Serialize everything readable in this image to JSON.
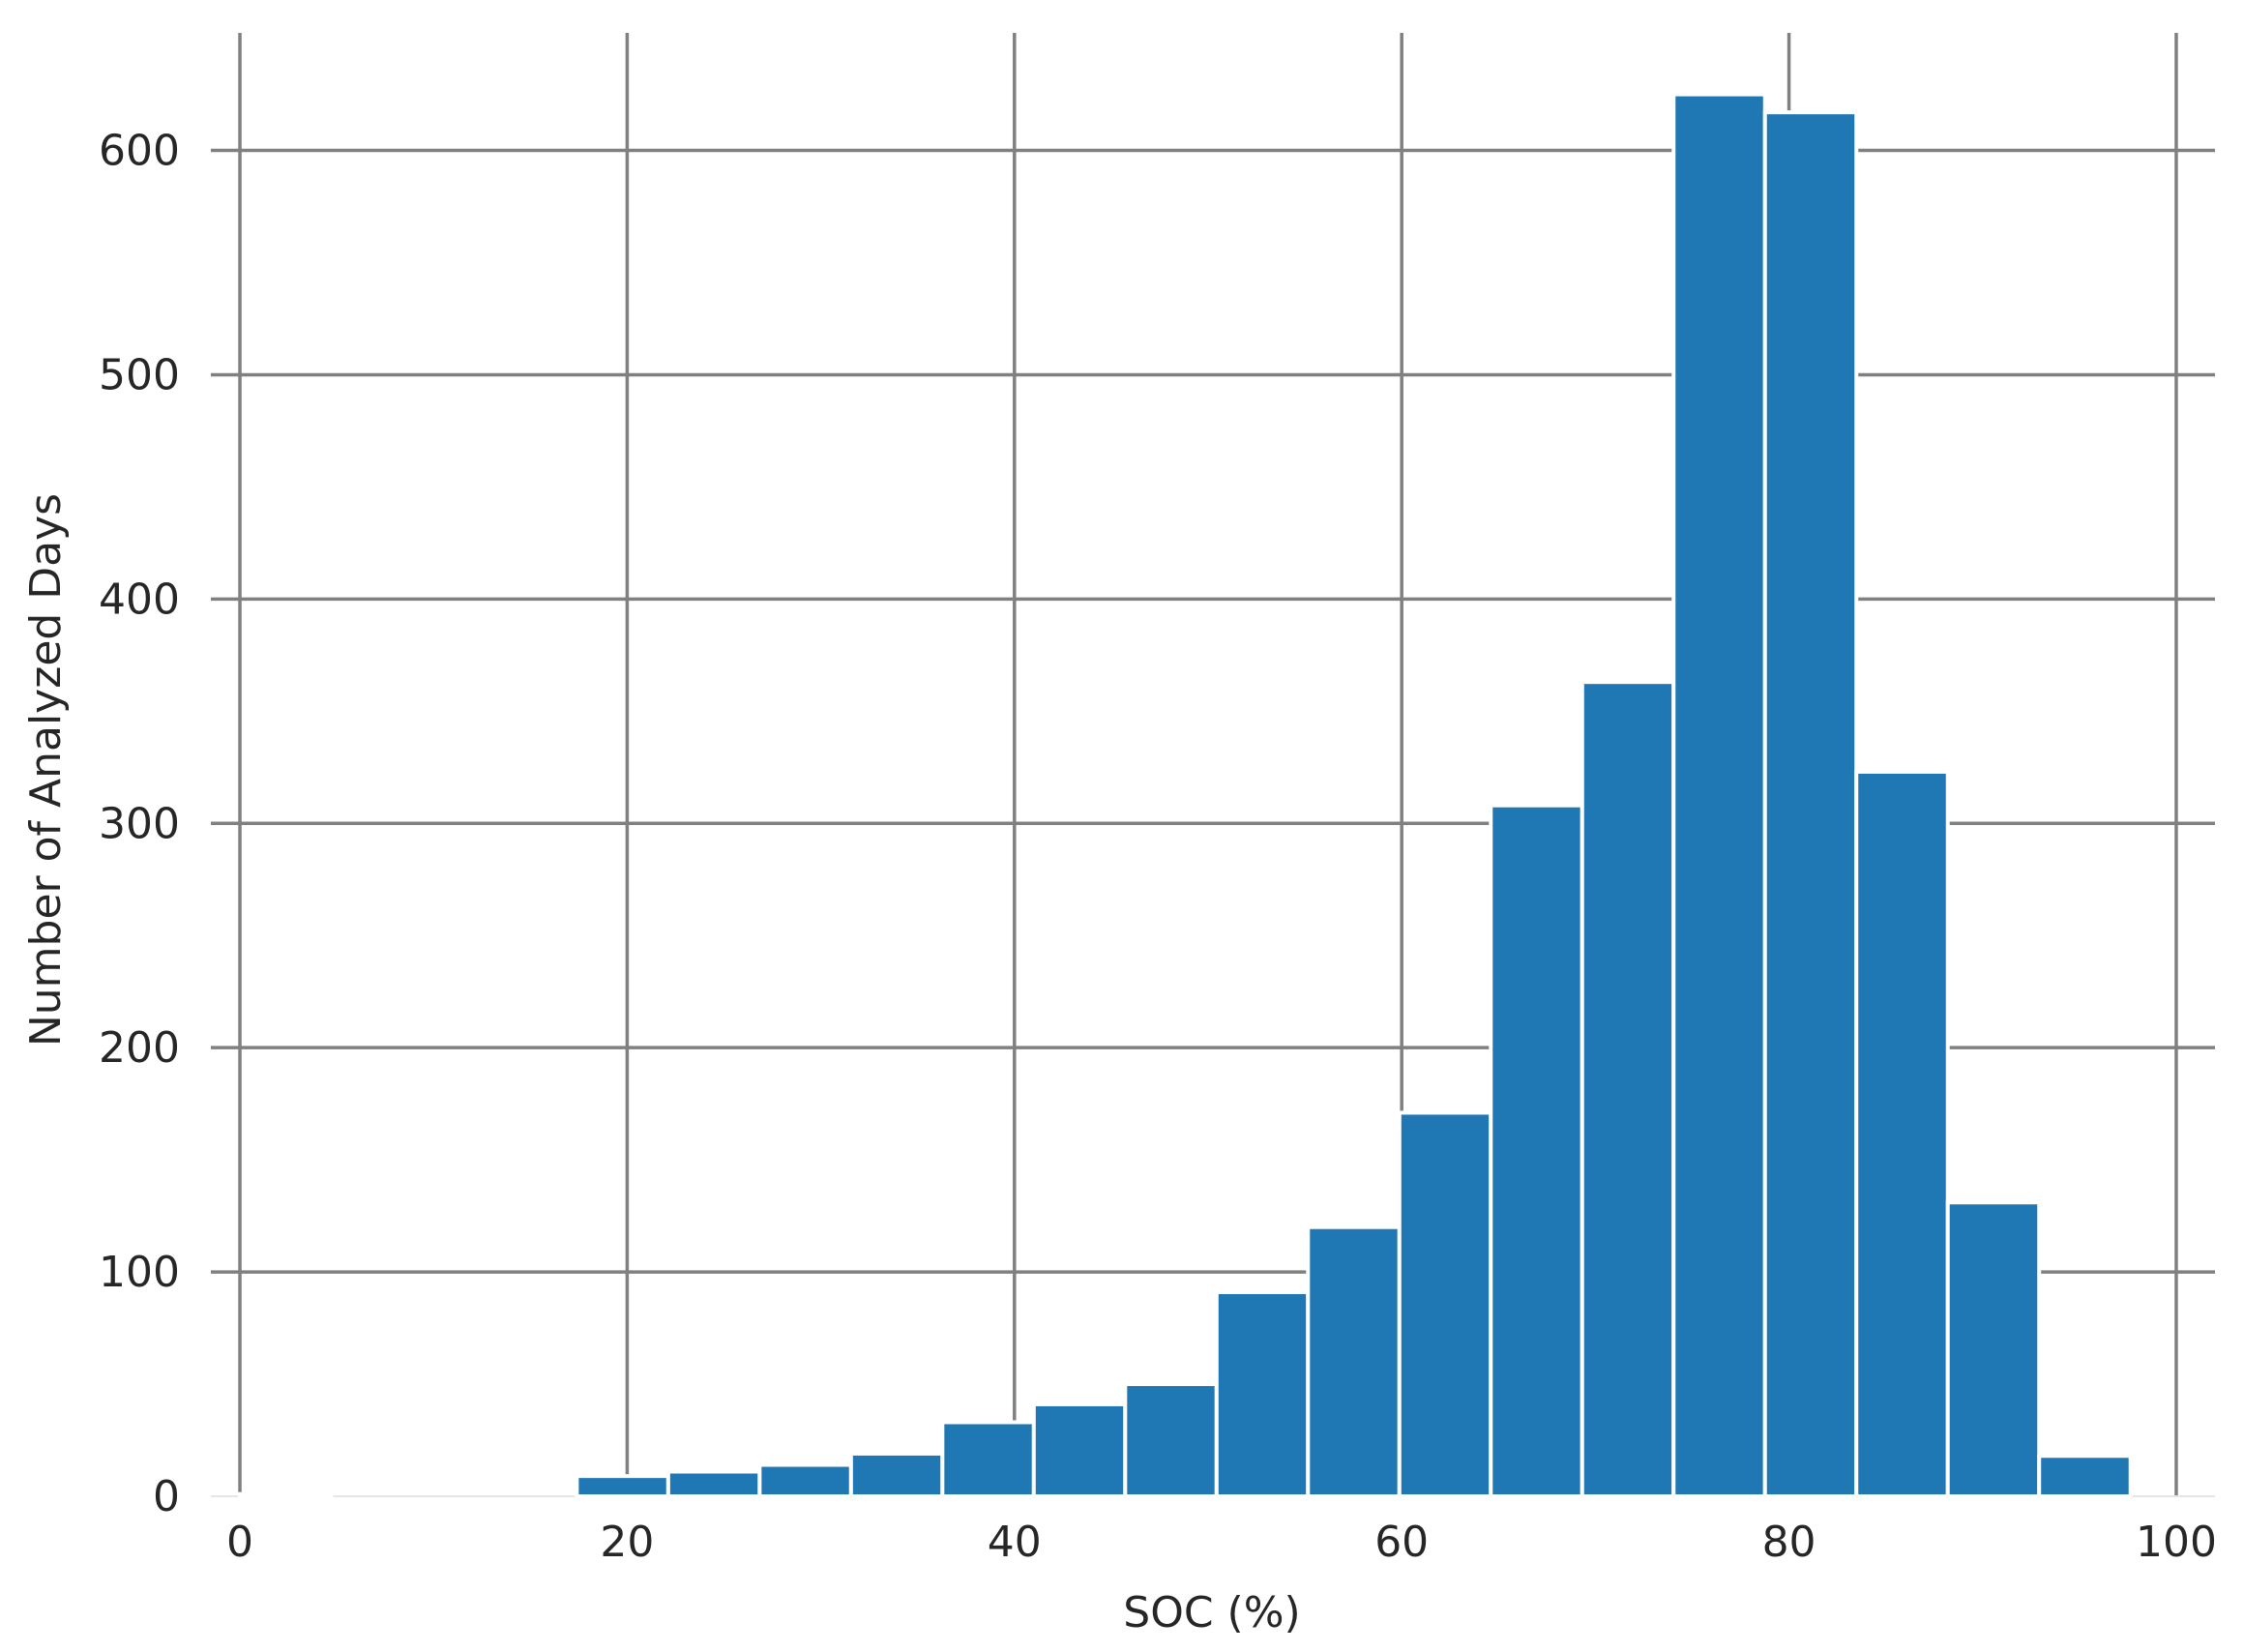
{
  "chart_data": {
    "type": "bar",
    "title": "",
    "xlabel": "SOC (%)",
    "ylabel": "Number of Analyzed Days",
    "xlim": [
      -1.5,
      102
    ],
    "ylim": [
      0,
      655
    ],
    "xticks": [
      0,
      20,
      40,
      60,
      80,
      100
    ],
    "yticks": [
      0,
      100,
      200,
      300,
      400,
      500,
      600
    ],
    "grid": true,
    "bar_color": "#1f77b4",
    "grid_color": "#808080",
    "bin_width": 4.72,
    "bins": [
      {
        "x0": 0.0,
        "x1": 4.72,
        "count": 1
      },
      {
        "x0": 17.4,
        "x1": 22.12,
        "count": 9
      },
      {
        "x0": 22.12,
        "x1": 26.84,
        "count": 11
      },
      {
        "x0": 26.84,
        "x1": 31.56,
        "count": 14
      },
      {
        "x0": 31.56,
        "x1": 36.28,
        "count": 19
      },
      {
        "x0": 36.28,
        "x1": 41.0,
        "count": 33
      },
      {
        "x0": 41.0,
        "x1": 45.72,
        "count": 41
      },
      {
        "x0": 45.72,
        "x1": 50.44,
        "count": 50
      },
      {
        "x0": 50.44,
        "x1": 55.16,
        "count": 91
      },
      {
        "x0": 55.16,
        "x1": 59.88,
        "count": 120
      },
      {
        "x0": 59.88,
        "x1": 64.6,
        "count": 171
      },
      {
        "x0": 64.6,
        "x1": 69.32,
        "count": 308
      },
      {
        "x0": 69.32,
        "x1": 74.04,
        "count": 363
      },
      {
        "x0": 74.04,
        "x1": 78.76,
        "count": 625
      },
      {
        "x0": 78.76,
        "x1": 83.48,
        "count": 617
      },
      {
        "x0": 83.48,
        "x1": 88.2,
        "count": 323
      },
      {
        "x0": 88.2,
        "x1": 92.92,
        "count": 131
      },
      {
        "x0": 92.92,
        "x1": 97.64,
        "count": 18
      }
    ]
  }
}
